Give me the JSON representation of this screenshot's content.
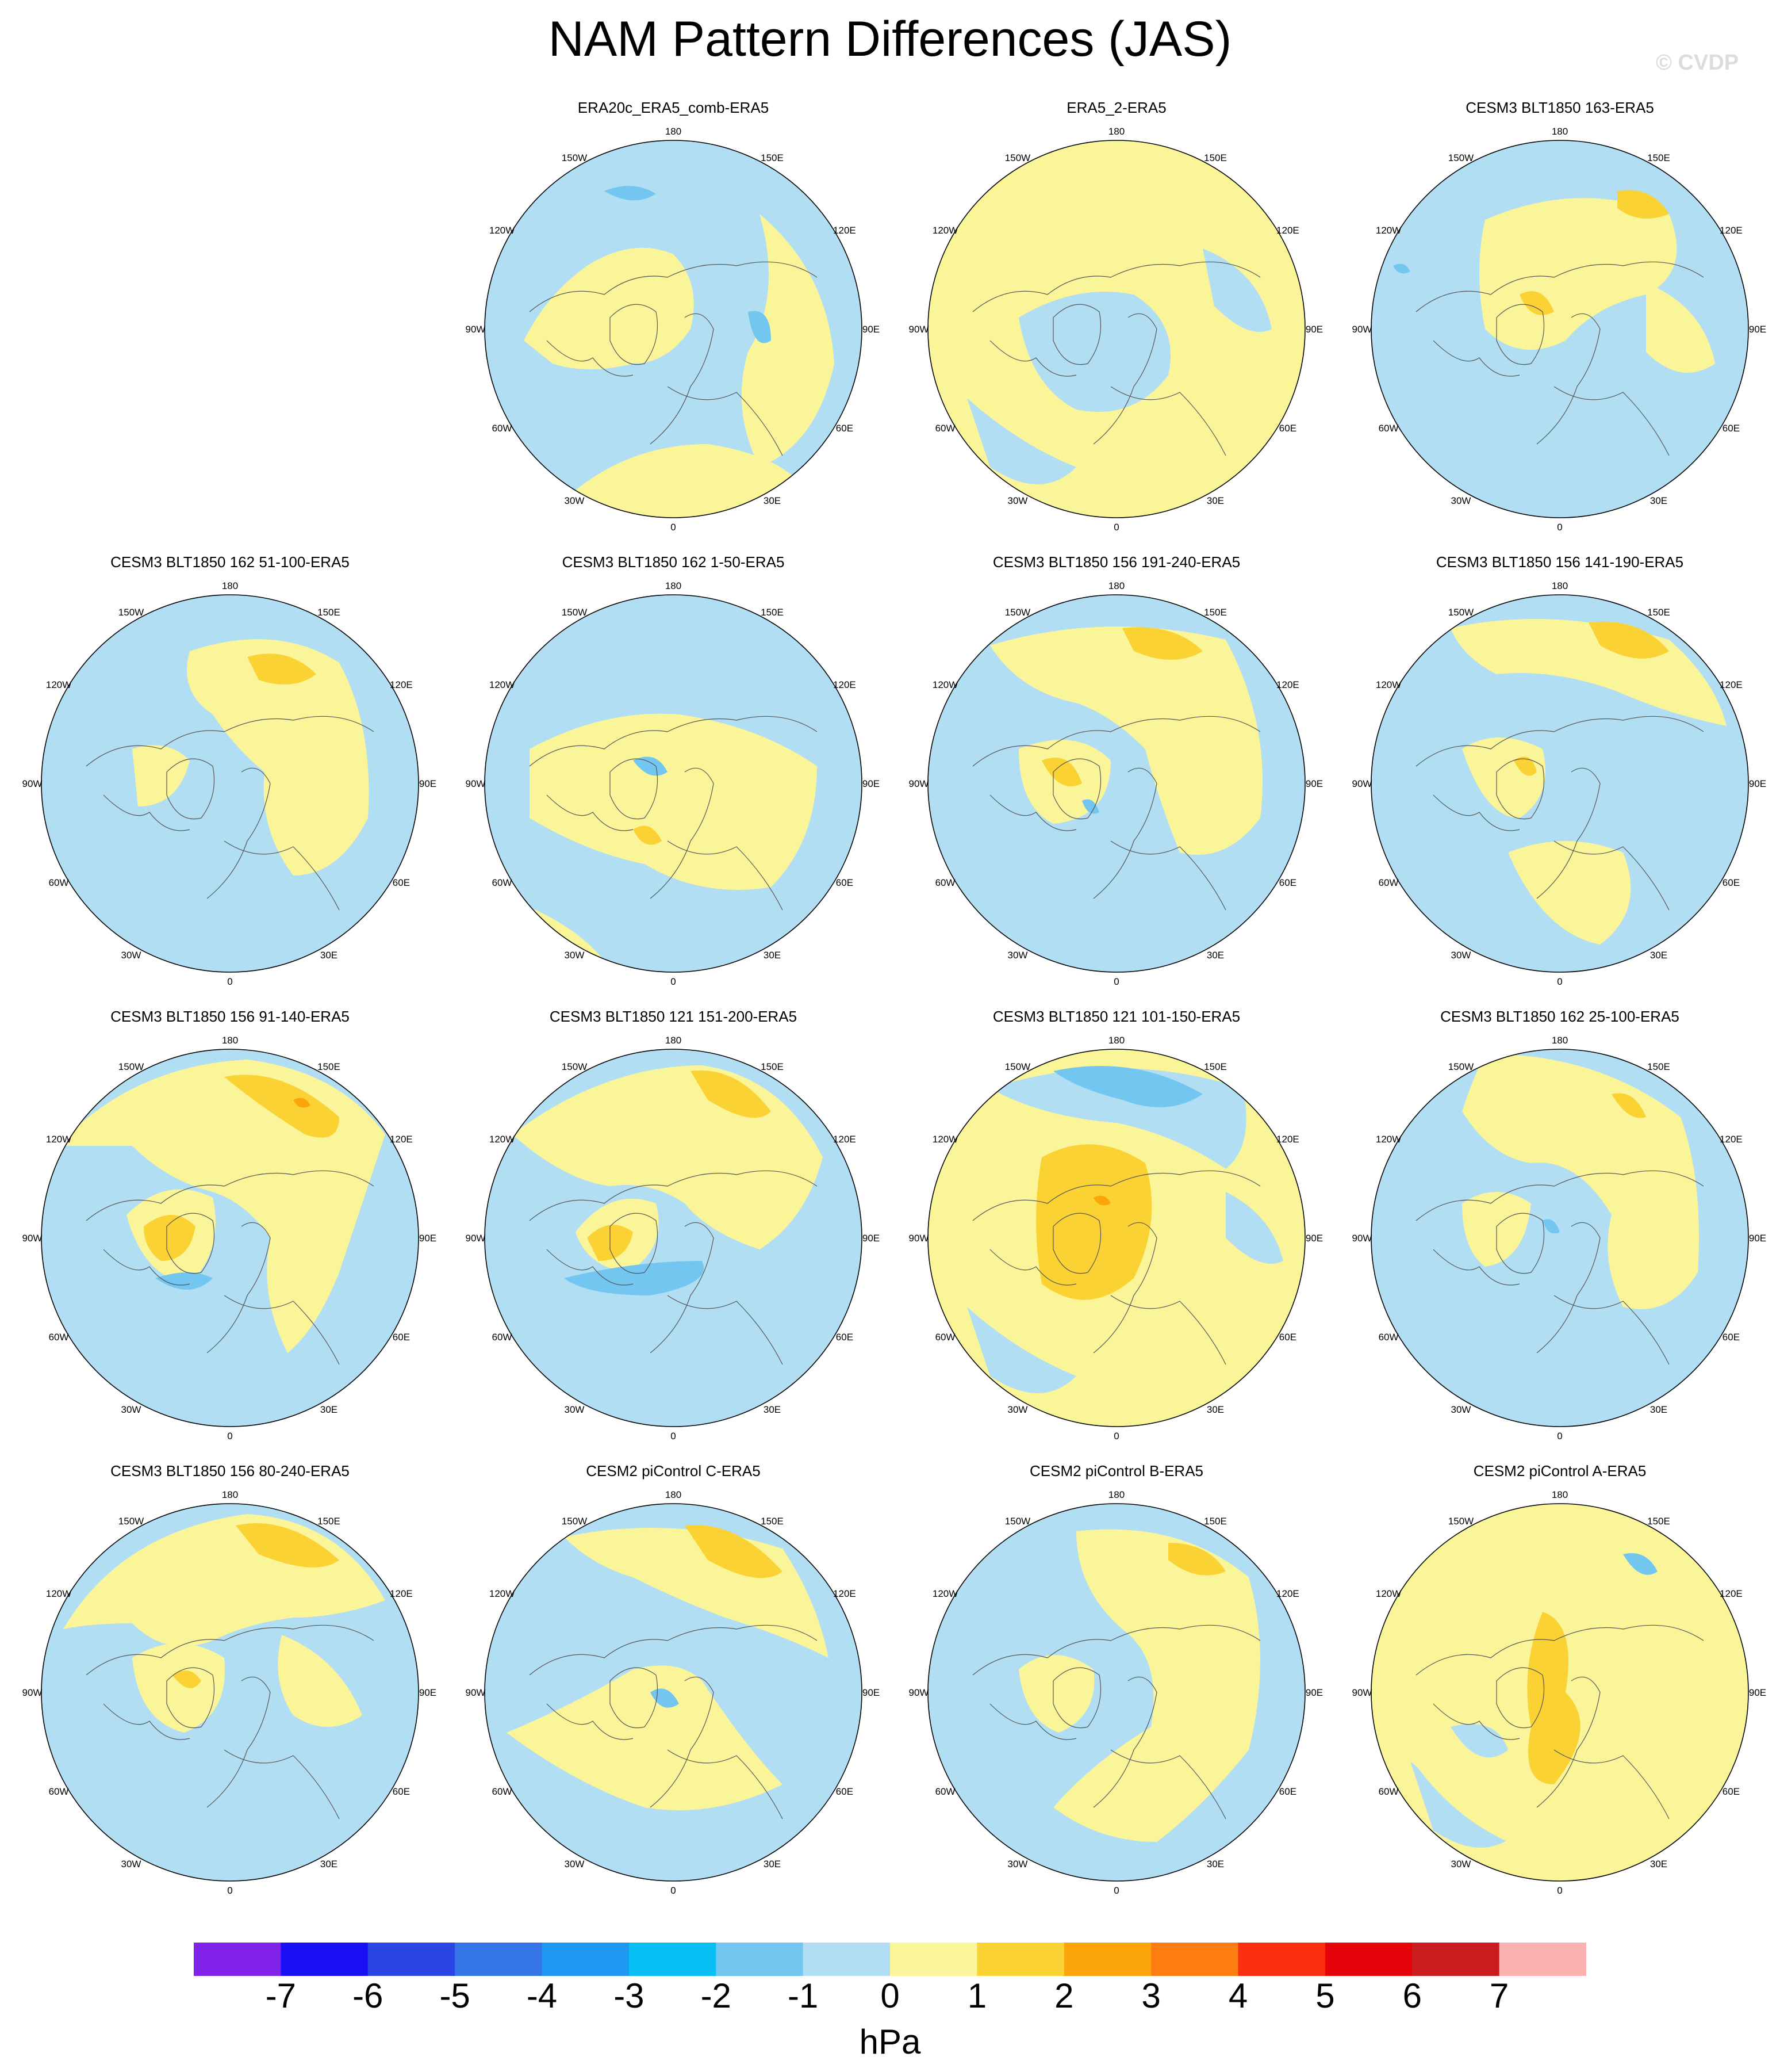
{
  "title": "NAM Pattern Differences (JAS)",
  "watermark": "© CVDP",
  "units": "hPa",
  "lon_labels": [
    "180",
    "150E",
    "120E",
    "90E",
    "60E",
    "30E",
    "0",
    "30W",
    "60W",
    "90W",
    "120W",
    "150W"
  ],
  "colorbar": {
    "colors": [
      "#8122e8",
      "#1a10f5",
      "#2a45e3",
      "#3575e8",
      "#1e97f2",
      "#07bff2",
      "#72c6f0",
      "#b2def3",
      "#fbf59a",
      "#fbd234",
      "#fca50a",
      "#fd7d10",
      "#fc3010",
      "#e50309",
      "#c91c1e",
      "#fdb2b2"
    ],
    "labels": [
      "-7",
      "-6",
      "-5",
      "-4",
      "-3",
      "-2",
      "-1",
      "0",
      "1",
      "2",
      "3",
      "4",
      "5",
      "6",
      "7"
    ]
  },
  "panels": [
    {
      "title": "ERA20c_ERA5_comb-ERA5",
      "dominant": "negative"
    },
    {
      "title": "ERA5_2-ERA5",
      "dominant": "positive"
    },
    {
      "title": "CESM3 BLT1850 163-ERA5",
      "dominant": "negative"
    },
    {
      "title": "CESM3 BLT1850 162 51-100-ERA5",
      "dominant": "negative"
    },
    {
      "title": "CESM3 BLT1850 162 1-50-ERA5",
      "dominant": "mixed"
    },
    {
      "title": "CESM3 BLT1850 156 191-240-ERA5",
      "dominant": "mixed"
    },
    {
      "title": "CESM3 BLT1850 156 141-190-ERA5",
      "dominant": "negative"
    },
    {
      "title": "CESM3 BLT1850 156 91-140-ERA5",
      "dominant": "negative"
    },
    {
      "title": "CESM3 BLT1850 121 151-200-ERA5",
      "dominant": "negative"
    },
    {
      "title": "CESM3 BLT1850 121 101-150-ERA5",
      "dominant": "positive"
    },
    {
      "title": "CESM3 BLT1850 162 25-100-ERA5",
      "dominant": "negative"
    },
    {
      "title": "CESM3 BLT1850 156 80-240-ERA5",
      "dominant": "negative"
    },
    {
      "title": "CESM2 piControl C-ERA5",
      "dominant": "negative"
    },
    {
      "title": "CESM2 piControl B-ERA5",
      "dominant": "negative"
    },
    {
      "title": "CESM2 piControl A-ERA5",
      "dominant": "positive"
    }
  ]
}
